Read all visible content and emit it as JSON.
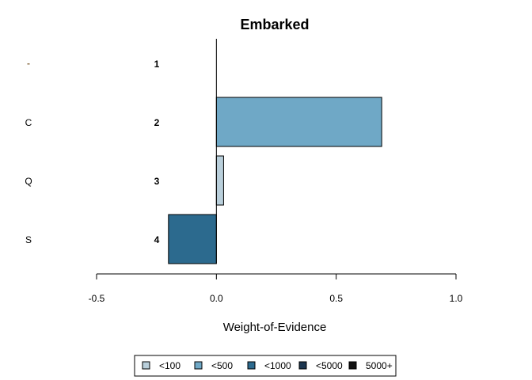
{
  "chart_data": {
    "type": "bar",
    "orientation": "horizontal",
    "title": "Embarked",
    "xlabel": "Weight-of-Evidence",
    "ylabel": "",
    "xlim": [
      -0.5,
      1.0
    ],
    "xticks": [
      "-0.5",
      "0.0",
      "0.5",
      "1.0"
    ],
    "xtick_values": [
      -0.5,
      0.0,
      0.5,
      1.0
    ],
    "categories": [
      "",
      "C",
      "Q",
      "S"
    ],
    "category_markers": [
      {
        "symbol": "-",
        "color": "#8B6F47"
      },
      null,
      null,
      null
    ],
    "bin_index": [
      "1",
      "2",
      "3",
      "4"
    ],
    "values": [
      0.0,
      0.69,
      0.03,
      -0.2
    ],
    "count_class": [
      "<100",
      "<500",
      "<100",
      "<1000"
    ],
    "legend": {
      "placement": "bottom",
      "entries": [
        {
          "label": "<100",
          "color": "#B9CFDB"
        },
        {
          "label": "<500",
          "color": "#6FA8C6"
        },
        {
          "label": "<1000",
          "color": "#2C6A8E"
        },
        {
          "label": "<5000",
          "color": "#1C3650"
        },
        {
          "label": "5000+",
          "color": "#111111"
        }
      ]
    }
  }
}
